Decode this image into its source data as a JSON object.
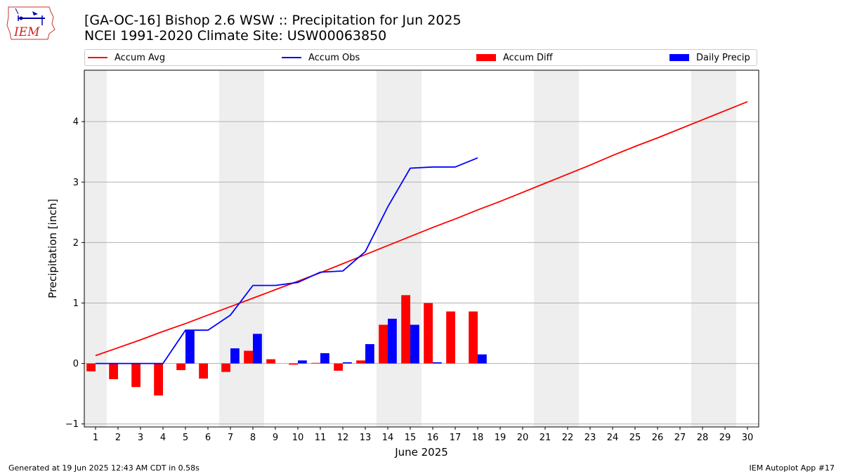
{
  "header": {
    "title_line1": "[GA-OC-16] Bishop 2.6 WSW :: Precipitation for Jun 2025",
    "title_line2": "NCEI 1991-2020 Climate Site: USW00063850",
    "logo_text": "IEM"
  },
  "legend": {
    "placement": "top, above plot",
    "items": [
      {
        "label": "Accum Avg",
        "kind": "line",
        "color": "#ff0000"
      },
      {
        "label": "Accum Obs",
        "kind": "line",
        "color": "#0000ff"
      },
      {
        "label": "Accum Diff",
        "kind": "bar",
        "color": "#ff0000"
      },
      {
        "label": "Daily Precip",
        "kind": "bar",
        "color": "#0000ff"
      }
    ]
  },
  "footer": {
    "left": "Generated at 19 Jun 2025 12:43 AM CDT in 0.58s",
    "right": "IEM Autoplot App #17"
  },
  "chart_data": {
    "type": "bar",
    "title": "[GA-OC-16] Bishop 2.6 WSW :: Precipitation for Jun 2025",
    "subtitle": "NCEI 1991-2020 Climate Site: USW00063850",
    "xlabel": "June 2025",
    "ylabel": "Precipitation [inch]",
    "x": [
      1,
      2,
      3,
      4,
      5,
      6,
      7,
      8,
      9,
      10,
      11,
      12,
      13,
      14,
      15,
      16,
      17,
      18,
      19,
      20,
      21,
      22,
      23,
      24,
      25,
      26,
      27,
      28,
      29,
      30
    ],
    "xlim": [
      0.5,
      30.5
    ],
    "ylim": [
      -1.05,
      4.85
    ],
    "yticks": [
      -1,
      0,
      1,
      2,
      3,
      4
    ],
    "grid": "horizontal",
    "weekend_shading": [
      [
        1,
        1
      ],
      [
        7,
        8
      ],
      [
        14,
        15
      ],
      [
        21,
        22
      ],
      [
        28,
        29
      ]
    ],
    "shade_color": "#eeeeee",
    "series": [
      {
        "name": "Accum Avg",
        "kind": "line",
        "color": "#ff0000",
        "x": [
          1,
          2,
          3,
          4,
          5,
          6,
          7,
          8,
          9,
          10,
          11,
          12,
          13,
          14,
          15,
          16,
          17,
          18,
          19,
          20,
          21,
          22,
          23,
          24,
          25,
          26,
          27,
          28,
          29,
          30
        ],
        "values": [
          0.13,
          0.26,
          0.39,
          0.53,
          0.66,
          0.8,
          0.94,
          1.08,
          1.22,
          1.36,
          1.5,
          1.65,
          1.8,
          1.95,
          2.1,
          2.25,
          2.39,
          2.54,
          2.68,
          2.83,
          2.98,
          3.13,
          3.28,
          3.44,
          3.59,
          3.73,
          3.88,
          4.03,
          4.18,
          4.33
        ]
      },
      {
        "name": "Accum Obs",
        "kind": "line",
        "color": "#0000ff",
        "x": [
          1,
          2,
          3,
          4,
          5,
          6,
          7,
          8,
          9,
          10,
          11,
          12,
          13,
          14,
          15,
          16,
          17,
          18
        ],
        "values": [
          0.0,
          0.0,
          0.0,
          0.0,
          0.55,
          0.55,
          0.8,
          1.29,
          1.29,
          1.34,
          1.51,
          1.53,
          1.85,
          2.59,
          3.23,
          3.25,
          3.25,
          3.4
        ]
      },
      {
        "name": "Accum Diff",
        "kind": "bar",
        "color": "#ff0000",
        "x": [
          1,
          2,
          3,
          4,
          5,
          6,
          7,
          8,
          9,
          10,
          11,
          12,
          13,
          14,
          15,
          16,
          17,
          18
        ],
        "values": [
          -0.13,
          -0.26,
          -0.39,
          -0.53,
          -0.11,
          -0.25,
          -0.14,
          0.21,
          0.07,
          -0.02,
          0.01,
          -0.12,
          0.05,
          0.64,
          1.13,
          1.0,
          0.86,
          0.86
        ]
      },
      {
        "name": "Daily Precip",
        "kind": "bar",
        "color": "#0000ff",
        "x": [
          1,
          2,
          3,
          4,
          5,
          6,
          7,
          8,
          9,
          10,
          11,
          12,
          13,
          14,
          15,
          16,
          17,
          18
        ],
        "values": [
          0.0,
          0.0,
          0.0,
          0.0,
          0.55,
          0.0,
          0.25,
          0.49,
          0.0,
          0.05,
          0.17,
          0.02,
          0.32,
          0.74,
          0.64,
          0.02,
          0.0,
          0.15
        ]
      }
    ]
  }
}
